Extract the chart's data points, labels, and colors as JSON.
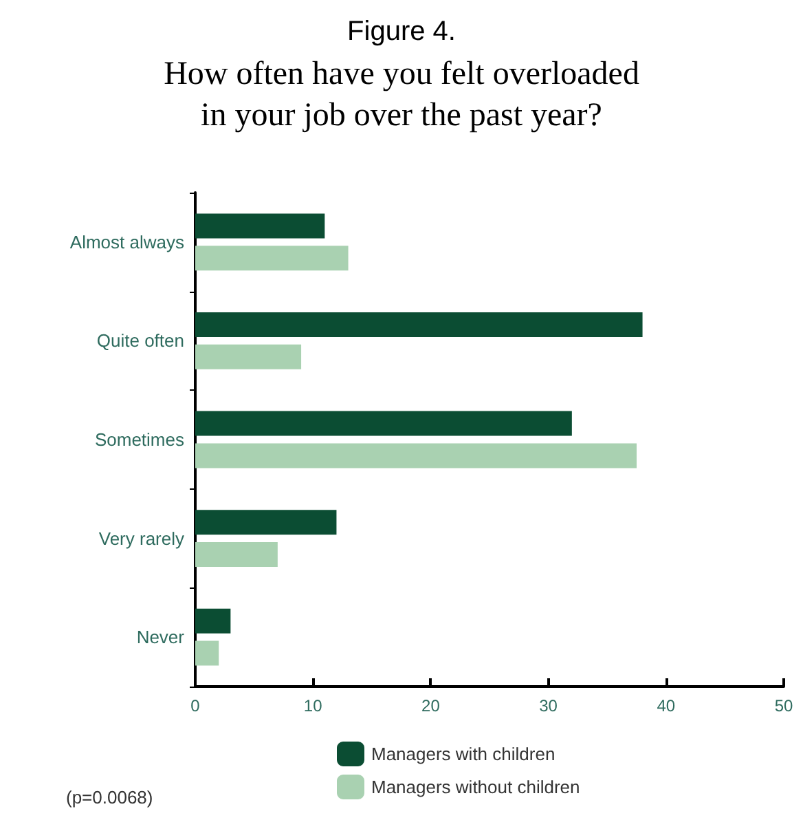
{
  "chart_data": {
    "type": "bar",
    "orientation": "horizontal",
    "title": "Figure 4.",
    "subtitle": "How often have you felt overloaded\nin your job over the past year?",
    "categories": [
      "Almost always",
      "Quite often",
      "Sometimes",
      "Very rarely",
      "Never"
    ],
    "series": [
      {
        "name": "Managers with children",
        "color": "#0b4d33",
        "values": [
          11,
          38,
          32,
          12,
          3
        ]
      },
      {
        "name": "Managers without children",
        "color": "#a9d1b1",
        "values": [
          13,
          9,
          37.5,
          7,
          2
        ]
      }
    ],
    "xlim": [
      0,
      50
    ],
    "xticks": [
      0,
      10,
      20,
      30,
      40,
      50
    ],
    "grid": false,
    "legend": "bottom",
    "annotations": [
      "(p=0.0068)"
    ]
  }
}
